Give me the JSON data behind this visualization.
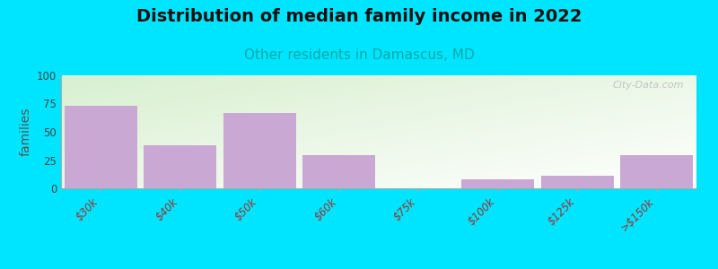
{
  "title": "Distribution of median family income in 2022",
  "subtitle": "Other residents in Damascus, MD",
  "title_fontsize": 14,
  "subtitle_fontsize": 11,
  "subtitle_color": "#00aaaa",
  "ylabel": "families",
  "ylabel_fontsize": 10,
  "categories": [
    "$30k",
    "$40k",
    "$50k",
    "$60k",
    "$75k",
    "$100k",
    "$125k",
    ">$150k"
  ],
  "values": [
    73,
    38,
    67,
    29,
    0,
    8,
    11,
    29
  ],
  "bar_color": "#c9a8d4",
  "bar_color_light": "#ddd0e8",
  "background_outer": "#00e5ff",
  "background_plot_top_left": "#d8f0d0",
  "background_plot_bottom_right": "#f8f8ff",
  "ylim": [
    0,
    100
  ],
  "yticks": [
    0,
    25,
    50,
    75,
    100
  ],
  "watermark": "City-Data.com",
  "bar_width": 0.92,
  "tick_color": "#993333",
  "spine_color": "#aaaaaa"
}
